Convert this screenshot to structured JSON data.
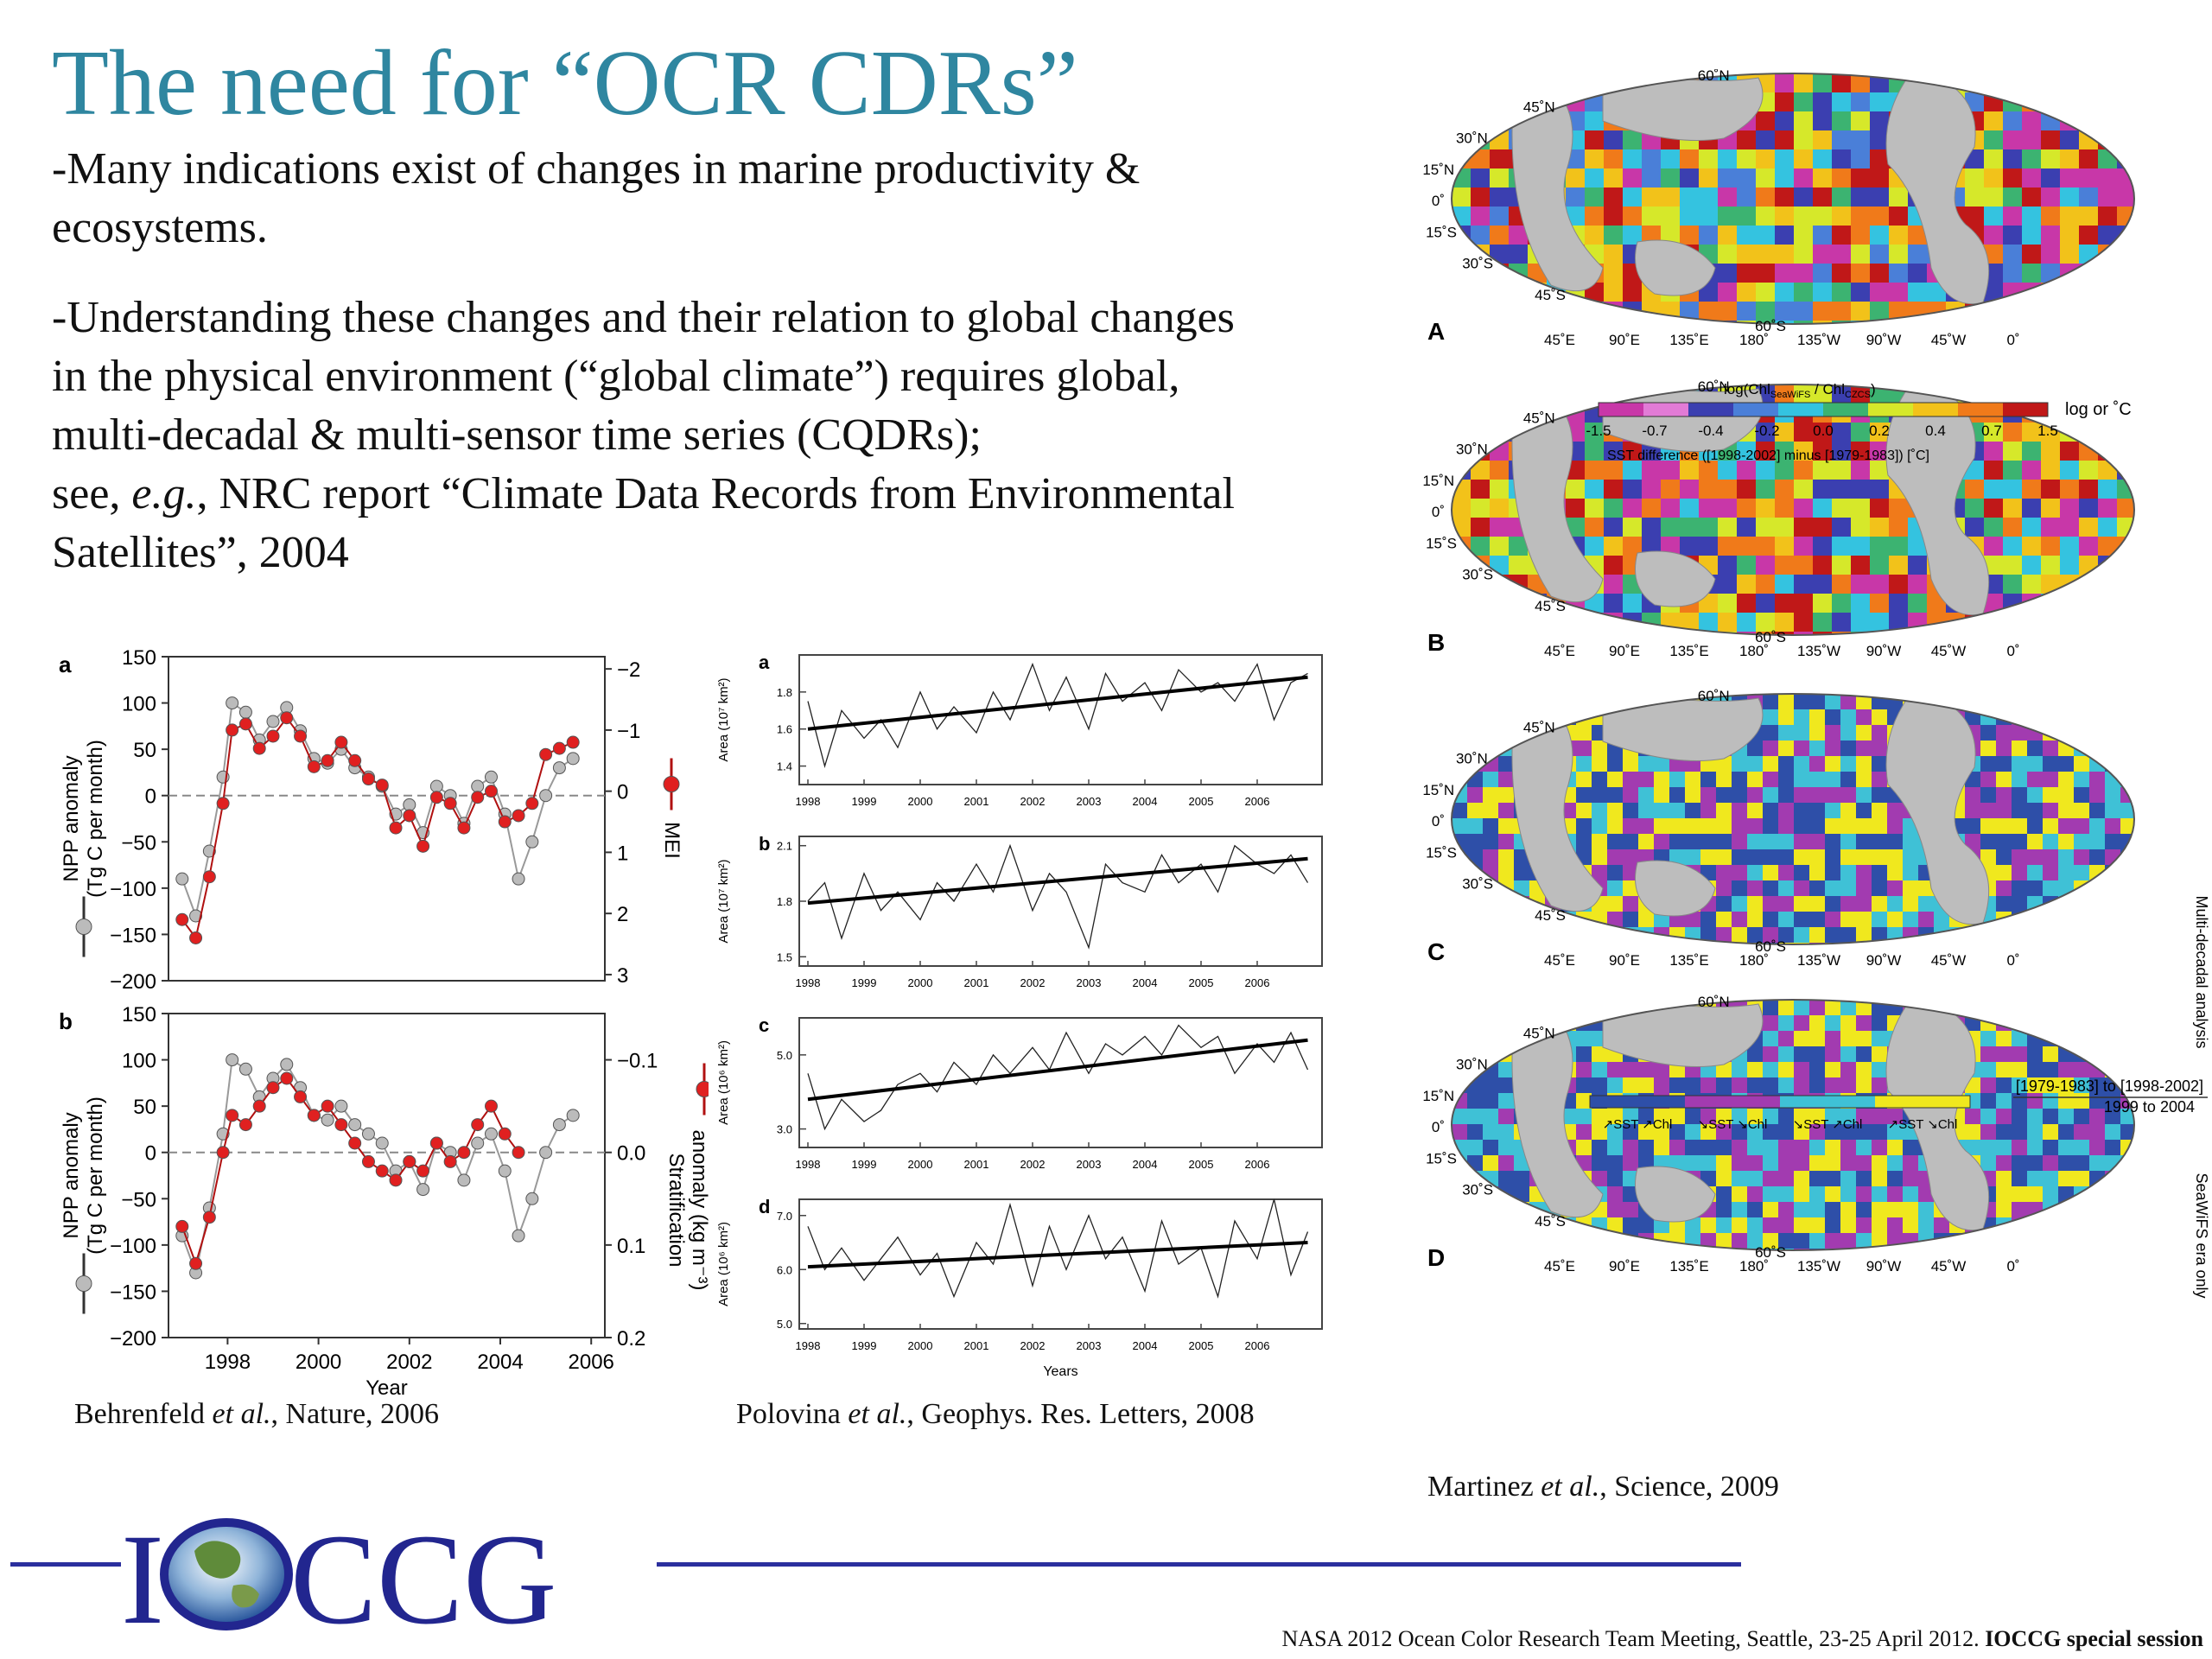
{
  "slide": {
    "title": "The need for “OCR CDRs”",
    "bullet1": "-Many indications exist of changes in marine productivity & ecosystems.",
    "bullet2_lines": [
      "-Understanding these changes and their relation to global changes",
      "in the physical environment (“global climate”) requires global,",
      "multi-decadal & multi-sensor time series (CQDRs);"
    ],
    "bullet3_pre": "see, ",
    "bullet3_eg": "e.g.",
    "bullet3_post": ", NRC report “Climate Data Records from Environmental",
    "bullet3_line2": "Satellites”, 2004"
  },
  "citations": {
    "behrenfeld": {
      "author": "Behrenfeld ",
      "etal": "et al.",
      "rest": ", Nature, 2006"
    },
    "polovina": {
      "author": "Polovina ",
      "etal": "et al.",
      "rest": ", Geophys. Res. Letters, 2008"
    },
    "martinez": {
      "author": "Martinez ",
      "etal": "et al.",
      "rest": ", Science, 2009"
    }
  },
  "footer": {
    "text": "NASA 2012 Ocean Color Research Team Meeting, Seattle, 23-25 April 2012. ",
    "bold": "IOCCG special session"
  },
  "logo": {
    "letter_i": "I",
    "letters": "CCG"
  },
  "behrenfeld_chart": {
    "panel_a_label": "a",
    "panel_b_label": "b",
    "ylabel_left_1": "NPP anomaly",
    "ylabel_left_2": "(Tg C per month)",
    "ylabel_right_a": "MEI",
    "ylabel_right_b_1": "Stratification",
    "ylabel_right_b_2": "anomaly (kg m⁻³)",
    "xlabel": "Year",
    "left_ticks": [
      "150",
      "100",
      "50",
      "0",
      "−50",
      "−100",
      "−150",
      "−200"
    ],
    "right_ticks_a": [
      "−2",
      "−1",
      "0",
      "1",
      "2",
      "3"
    ],
    "right_ticks_b": [
      "−0.1",
      "0.0",
      "0.1",
      "0.2"
    ],
    "x_ticks": [
      "1998",
      "2000",
      "2002",
      "2004",
      "2006"
    ]
  },
  "chart_data": [
    {
      "type": "line",
      "title": "",
      "panel": "a",
      "xlabel": "Year",
      "ylabel": "NPP anomaly (Tg C per month)",
      "y2label": "MEI",
      "xlim": [
        1996.7,
        2006.3
      ],
      "ylim": [
        -200,
        150
      ],
      "y2lim": [
        -2.2,
        3.1
      ],
      "y2_inverted": true,
      "series": [
        {
          "name": "NPP anomaly",
          "color": "#bbbbbb",
          "axis": "left",
          "x": [
            1997.0,
            1997.3,
            1997.6,
            1997.9,
            1998.1,
            1998.4,
            1998.7,
            1999.0,
            1999.3,
            1999.6,
            1999.9,
            2000.2,
            2000.5,
            2000.8,
            2001.1,
            2001.4,
            2001.7,
            2002.0,
            2002.3,
            2002.6,
            2002.9,
            2003.2,
            2003.5,
            2003.8,
            2004.1,
            2004.4,
            2004.7,
            2005.0,
            2005.3,
            2005.6
          ],
          "y": [
            -90,
            -130,
            -60,
            20,
            100,
            90,
            60,
            80,
            95,
            70,
            40,
            35,
            50,
            30,
            20,
            10,
            -20,
            -10,
            -40,
            10,
            0,
            -30,
            10,
            20,
            -20,
            -90,
            -50,
            0,
            30,
            40
          ]
        },
        {
          "name": "MEI",
          "color": "#e02020",
          "axis": "right",
          "x": [
            1997.0,
            1997.3,
            1997.6,
            1997.9,
            1998.1,
            1998.4,
            1998.7,
            1999.0,
            1999.3,
            1999.6,
            1999.9,
            2000.2,
            2000.5,
            2000.8,
            2001.1,
            2001.4,
            2001.7,
            2002.0,
            2002.3,
            2002.6,
            2002.9,
            2003.2,
            2003.5,
            2003.8,
            2004.1,
            2004.4,
            2004.7,
            2005.0,
            2005.3,
            2005.6
          ],
          "y": [
            2.1,
            2.4,
            1.4,
            0.2,
            -1.0,
            -1.1,
            -0.7,
            -0.9,
            -1.2,
            -0.9,
            -0.4,
            -0.5,
            -0.8,
            -0.5,
            -0.2,
            -0.1,
            0.6,
            0.4,
            0.9,
            0.1,
            0.2,
            0.6,
            0.1,
            0.0,
            0.5,
            0.4,
            0.2,
            -0.6,
            -0.7,
            -0.8
          ]
        }
      ]
    },
    {
      "type": "line",
      "title": "",
      "panel": "b",
      "xlabel": "Year",
      "ylabel": "NPP anomaly (Tg C per month)",
      "y2label": "Stratification anomaly (kg m⁻³)",
      "xlim": [
        1996.7,
        2006.3
      ],
      "ylim": [
        -200,
        150
      ],
      "y2lim": [
        -0.15,
        0.2
      ],
      "y2_inverted": false,
      "series": [
        {
          "name": "NPP anomaly",
          "color": "#bbbbbb",
          "axis": "left",
          "x": [
            1997.0,
            1997.3,
            1997.6,
            1997.9,
            1998.1,
            1998.4,
            1998.7,
            1999.0,
            1999.3,
            1999.6,
            1999.9,
            2000.2,
            2000.5,
            2000.8,
            2001.1,
            2001.4,
            2001.7,
            2002.0,
            2002.3,
            2002.6,
            2002.9,
            2003.2,
            2003.5,
            2003.8,
            2004.1,
            2004.4,
            2004.7,
            2005.0,
            2005.3,
            2005.6
          ],
          "y": [
            -90,
            -130,
            -60,
            20,
            100,
            90,
            60,
            80,
            95,
            70,
            40,
            35,
            50,
            30,
            20,
            10,
            -20,
            -10,
            -40,
            10,
            0,
            -30,
            10,
            20,
            -20,
            -90,
            -50,
            0,
            30,
            40
          ]
        },
        {
          "name": "Stratification anomaly",
          "color": "#e02020",
          "axis": "right",
          "x": [
            1997.0,
            1997.3,
            1997.6,
            1997.9,
            1998.1,
            1998.4,
            1998.7,
            1999.0,
            1999.3,
            1999.6,
            1999.9,
            2000.2,
            2000.5,
            2000.8,
            2001.1,
            2001.4,
            2001.7,
            2002.0,
            2002.3,
            2002.6,
            2002.9,
            2003.2,
            2003.5,
            2003.8,
            2004.1,
            2004.4
          ],
          "y": [
            0.08,
            0.12,
            0.07,
            0.0,
            -0.04,
            -0.03,
            -0.05,
            -0.07,
            -0.08,
            -0.06,
            -0.04,
            -0.05,
            -0.03,
            -0.01,
            0.01,
            0.02,
            0.03,
            0.01,
            0.02,
            -0.01,
            0.01,
            0.0,
            -0.03,
            -0.05,
            -0.02,
            0.0
          ]
        }
      ]
    },
    {
      "type": "line",
      "title": "",
      "panel": "a",
      "ylabel": "Area (10⁷ km²)",
      "xlim": [
        1998,
        2007
      ],
      "ylim": [
        1.3,
        2.0
      ],
      "y_ticks": [
        "1.8",
        "1.6",
        "1.4"
      ],
      "series": [
        {
          "name": "",
          "trend": [
            1.6,
            1.88
          ],
          "x": [
            1998.0,
            1998.3,
            1998.6,
            1999.0,
            1999.3,
            1999.6,
            2000.0,
            2000.3,
            2000.6,
            2001.0,
            2001.3,
            2001.6,
            2002.0,
            2002.3,
            2002.6,
            2003.0,
            2003.3,
            2003.6,
            2004.0,
            2004.3,
            2004.6,
            2005.0,
            2005.3,
            2005.6,
            2006.0,
            2006.3,
            2006.6,
            2006.9
          ],
          "y": [
            1.75,
            1.4,
            1.7,
            1.55,
            1.65,
            1.5,
            1.8,
            1.6,
            1.72,
            1.58,
            1.8,
            1.65,
            1.95,
            1.7,
            1.88,
            1.6,
            1.9,
            1.75,
            1.85,
            1.7,
            1.92,
            1.8,
            1.85,
            1.75,
            1.95,
            1.65,
            1.85,
            1.9
          ]
        }
      ]
    },
    {
      "type": "line",
      "title": "",
      "panel": "b",
      "ylabel": "Area (10⁷ km²)",
      "xlim": [
        1998,
        2007
      ],
      "ylim": [
        1.45,
        2.15
      ],
      "y_ticks": [
        "2.1",
        "1.8",
        "1.5"
      ],
      "series": [
        {
          "name": "",
          "trend": [
            1.79,
            2.03
          ],
          "x": [
            1998.0,
            1998.3,
            1998.6,
            1999.0,
            1999.3,
            1999.6,
            2000.0,
            2000.3,
            2000.6,
            2001.0,
            2001.3,
            2001.6,
            2002.0,
            2002.3,
            2002.6,
            2003.0,
            2003.3,
            2003.6,
            2004.0,
            2004.3,
            2004.6,
            2005.0,
            2005.3,
            2005.6,
            2006.0,
            2006.3,
            2006.6,
            2006.9
          ],
          "y": [
            1.8,
            1.9,
            1.6,
            1.95,
            1.75,
            1.85,
            1.7,
            1.9,
            1.8,
            2.0,
            1.85,
            2.1,
            1.75,
            1.95,
            1.85,
            1.55,
            2.0,
            1.9,
            1.85,
            2.05,
            1.9,
            2.0,
            1.85,
            2.1,
            2.0,
            1.95,
            2.05,
            1.9
          ]
        }
      ]
    },
    {
      "type": "line",
      "title": "",
      "panel": "c",
      "ylabel": "Area (10⁶ km²)",
      "xlim": [
        1998,
        2007
      ],
      "ylim": [
        2.5,
        6.0
      ],
      "y_ticks": [
        "5.0",
        "3.0"
      ],
      "series": [
        {
          "name": "",
          "trend": [
            3.8,
            5.4
          ],
          "x": [
            1998.0,
            1998.3,
            1998.6,
            1999.0,
            1999.3,
            1999.6,
            2000.0,
            2000.3,
            2000.6,
            2001.0,
            2001.3,
            2001.6,
            2002.0,
            2002.3,
            2002.6,
            2003.0,
            2003.3,
            2003.6,
            2004.0,
            2004.3,
            2004.6,
            2005.0,
            2005.3,
            2005.6,
            2006.0,
            2006.3,
            2006.6,
            2006.9
          ],
          "y": [
            4.5,
            3.0,
            3.8,
            3.2,
            3.5,
            4.2,
            4.5,
            4.0,
            4.8,
            4.2,
            5.0,
            4.5,
            5.2,
            4.6,
            5.6,
            4.5,
            5.3,
            5.0,
            5.5,
            5.0,
            5.8,
            5.2,
            5.5,
            4.5,
            5.3,
            4.8,
            5.6,
            4.6
          ]
        }
      ]
    },
    {
      "type": "line",
      "title": "",
      "panel": "d",
      "xlabel": "Years",
      "ylabel": "Area (10⁶ km²)",
      "xlim": [
        1998,
        2007
      ],
      "ylim": [
        4.9,
        7.3
      ],
      "y_ticks": [
        "7.0",
        "6.0",
        "5.0"
      ],
      "series": [
        {
          "name": "",
          "trend": [
            6.05,
            6.5
          ],
          "x": [
            1998.0,
            1998.3,
            1998.6,
            1999.0,
            1999.3,
            1999.6,
            2000.0,
            2000.3,
            2000.6,
            2001.0,
            2001.3,
            2001.6,
            2002.0,
            2002.3,
            2002.6,
            2003.0,
            2003.3,
            2003.6,
            2004.0,
            2004.3,
            2004.6,
            2005.0,
            2005.3,
            2005.6,
            2006.0,
            2006.3,
            2006.6,
            2006.9
          ],
          "y": [
            6.8,
            6.0,
            6.4,
            5.8,
            6.2,
            6.6,
            5.9,
            6.3,
            5.5,
            6.5,
            6.1,
            7.2,
            5.7,
            6.8,
            6.0,
            7.0,
            6.2,
            6.6,
            5.6,
            6.9,
            6.1,
            6.4,
            5.5,
            6.9,
            6.2,
            7.3,
            5.9,
            6.7
          ]
        }
      ]
    }
  ],
  "polovina_axes": {
    "x_ticks": [
      "1998",
      "1999",
      "2000",
      "2001",
      "2002",
      "2003",
      "2004",
      "2005",
      "2006"
    ],
    "xlabel": "Years"
  },
  "maps": {
    "panels": [
      {
        "label": "A"
      },
      {
        "label": "B"
      },
      {
        "label": "C"
      },
      {
        "label": "D"
      }
    ],
    "lat_labels": [
      "60˚N",
      "45˚N",
      "30˚N",
      "15˚N",
      "0˚",
      "15˚S",
      "30˚S",
      "45˚S",
      "60˚S"
    ],
    "lon_labels": [
      "45˚E",
      "90˚E",
      "135˚E",
      "180˚",
      "135˚W",
      "90˚W",
      "45˚W",
      "0˚"
    ],
    "colorbar1": {
      "label_top": "log(Chl",
      "label_top_sub1": "SeaWiFS",
      "label_top_mid": " / Chl",
      "label_top_sub2": "CZCS",
      "label_top_end": ")",
      "ticks": [
        "-1.5",
        "-0.7",
        "-0.4",
        "-0.2",
        "0.0",
        "0.2",
        "0.4",
        "0.7",
        "1.5"
      ],
      "unit": "log or ˚C",
      "label_bottom": "SST difference ([1998-2002] minus [1979-1983]) [˚C]",
      "colors": [
        "#c837a8",
        "#e27bd6",
        "#3b3fb0",
        "#4a7fd8",
        "#34c3e0",
        "#3cb371",
        "#d6e82a",
        "#f2c21a",
        "#f07a1a",
        "#c01818"
      ]
    },
    "colorbar2": {
      "categories": [
        "↗SST ↗Chl",
        "↘SST ↘Chl",
        "↘SST ↗Chl",
        "↗SST ↘Chl"
      ],
      "colors": [
        "#2e4fa8",
        "#a23bb0",
        "#3fc1d6",
        "#f0e81e"
      ]
    },
    "side_label_top": "Multi-decadal analysis",
    "side_label_bottom": "SeaWiFS era only",
    "side_range_1": "[1979-1983] to [1998-2002]",
    "side_range_2": "1999 to 2004"
  }
}
